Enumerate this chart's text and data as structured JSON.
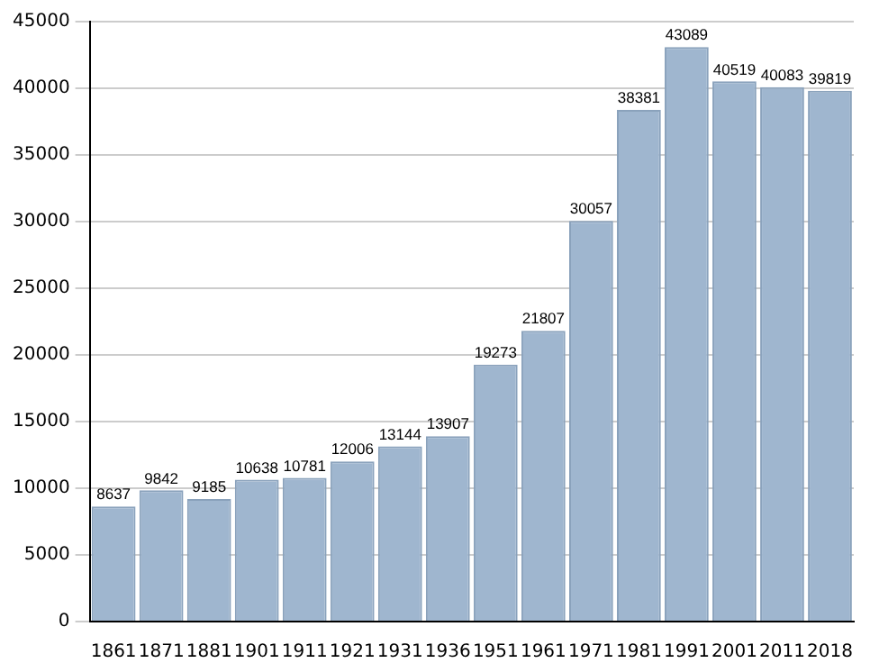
{
  "chart_data": {
    "type": "bar",
    "categories": [
      "1861",
      "1871",
      "1881",
      "1901",
      "1911",
      "1921",
      "1931",
      "1936",
      "1951",
      "1961",
      "1971",
      "1981",
      "1991",
      "2001",
      "2011",
      "2018"
    ],
    "values": [
      8637,
      9842,
      9185,
      10638,
      10781,
      12006,
      13144,
      13907,
      19273,
      21807,
      30057,
      38381,
      43089,
      40519,
      40083,
      39819
    ],
    "color": "#9fb6cf",
    "ylim": [
      0,
      45000
    ],
    "yticks": [
      0,
      5000,
      10000,
      15000,
      20000,
      25000,
      30000,
      35000,
      40000,
      45000
    ],
    "grid": "y",
    "data_labels": true
  }
}
